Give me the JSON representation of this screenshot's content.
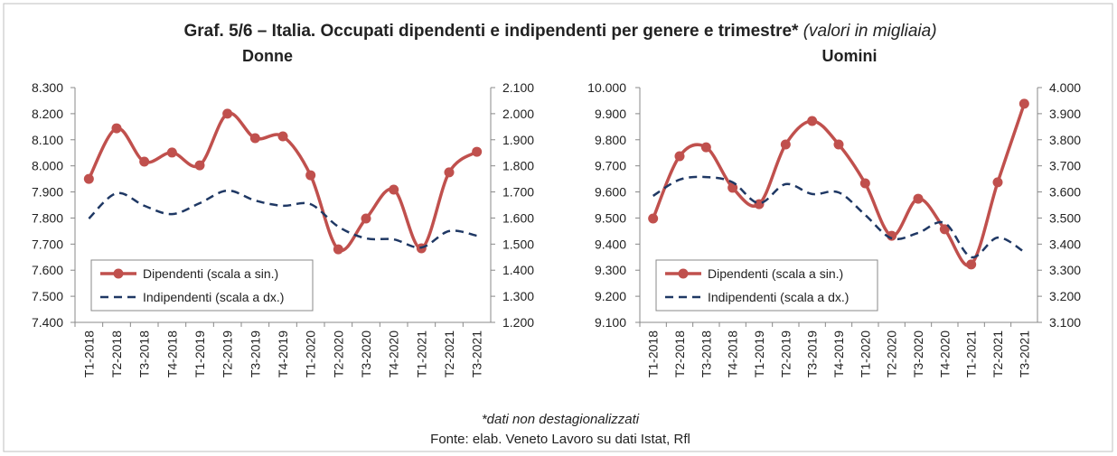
{
  "title_main": "Graf. 5/6 – Italia. Occupati dipendenti e indipendenti per genere e trimestre*",
  "title_note": "(valori in migliaia)",
  "footnote": "*dati non destagionalizzati",
  "source": "Fonte: elab. Veneto Lavoro su dati Istat, Rfl",
  "colors": {
    "dipendenti": "#c0504d",
    "indipendenti": "#1f3864"
  },
  "chart_data": [
    {
      "type": "line",
      "title": "Donne",
      "categories": [
        "T1-2018",
        "T2-2018",
        "T3-2018",
        "T4-2018",
        "T1-2019",
        "T2-2019",
        "T3-2019",
        "T4-2019",
        "T1-2020",
        "T2-2020",
        "T3-2020",
        "T4-2020",
        "T1-2021",
        "T2-2021",
        "T3-2021"
      ],
      "ylim_left": [
        7400,
        8300
      ],
      "ylim_right": [
        1200,
        2100
      ],
      "yticks_left": [
        "7.400",
        "7.500",
        "7.600",
        "7.700",
        "7.800",
        "7.900",
        "8.000",
        "8.100",
        "8.200",
        "8.300"
      ],
      "yticks_right": [
        "1.200",
        "1.300",
        "1.400",
        "1.500",
        "1.600",
        "1.700",
        "1.800",
        "1.900",
        "2.000",
        "2.100"
      ],
      "legend": "bottom-left",
      "series": [
        {
          "name": "Dipendenti (scala a sin.)",
          "axis": "left",
          "style": "line-markers",
          "values": [
            7950,
            8144,
            8016,
            8051,
            8002,
            8200,
            8106,
            8113,
            7964,
            7680,
            7798,
            7909,
            7684,
            7975,
            8054
          ]
        },
        {
          "name": "Indipendenti (scala a dx.)",
          "axis": "right",
          "style": "dashed",
          "values": [
            1598,
            1695,
            1647,
            1615,
            1657,
            1705,
            1667,
            1647,
            1653,
            1567,
            1522,
            1518,
            1487,
            1550,
            1532
          ]
        }
      ]
    },
    {
      "type": "line",
      "title": "Uomini",
      "categories": [
        "T1-2018",
        "T2-2018",
        "T3-2018",
        "T4-2018",
        "T1-2019",
        "T2-2019",
        "T3-2019",
        "T4-2019",
        "T1-2020",
        "T2-2020",
        "T3-2020",
        "T4-2020",
        "T1-2021",
        "T2-2021",
        "T3-2021"
      ],
      "ylim_left": [
        9100,
        10000
      ],
      "ylim_right": [
        3100,
        4000
      ],
      "yticks_left": [
        "9.100",
        "9.200",
        "9.300",
        "9.400",
        "9.500",
        "9.600",
        "9.700",
        "9.800",
        "9.900",
        "10.000"
      ],
      "yticks_right": [
        "3.100",
        "3.200",
        "3.300",
        "3.400",
        "3.500",
        "3.600",
        "3.700",
        "3.800",
        "3.900",
        "4.000"
      ],
      "legend": "bottom-left",
      "series": [
        {
          "name": "Dipendenti (scala a sin.)",
          "axis": "left",
          "style": "line-markers",
          "values": [
            9498,
            9737,
            9771,
            9616,
            9553,
            9782,
            9872,
            9782,
            9633,
            9432,
            9574,
            9457,
            9322,
            9637,
            9938
          ]
        },
        {
          "name": "Indipendenti (scala a dx.)",
          "axis": "right",
          "style": "dashed",
          "values": [
            3585,
            3647,
            3657,
            3637,
            3557,
            3630,
            3592,
            3598,
            3512,
            3422,
            3443,
            3481,
            3350,
            3425,
            3370
          ]
        }
      ]
    }
  ]
}
